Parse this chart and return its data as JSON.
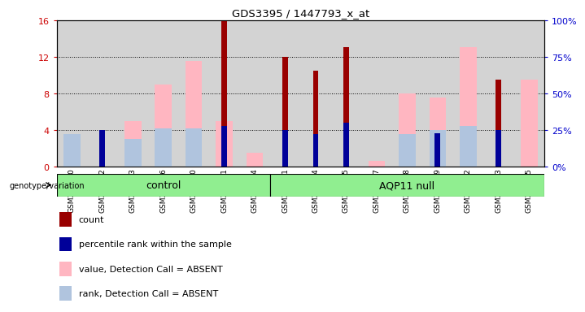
{
  "title": "GDS3395 / 1447793_x_at",
  "samples": [
    "GSM267980",
    "GSM267982",
    "GSM267983",
    "GSM267986",
    "GSM267990",
    "GSM267991",
    "GSM267994",
    "GSM267981",
    "GSM267984",
    "GSM267985",
    "GSM267987",
    "GSM267988",
    "GSM267989",
    "GSM267992",
    "GSM267993",
    "GSM267995"
  ],
  "groups": [
    "control",
    "control",
    "control",
    "control",
    "control",
    "control",
    "control",
    "AQP11 null",
    "AQP11 null",
    "AQP11 null",
    "AQP11 null",
    "AQP11 null",
    "AQP11 null",
    "AQP11 null",
    "AQP11 null",
    "AQP11 null"
  ],
  "count_left": [
    0,
    0,
    0,
    0,
    0,
    16,
    0,
    12,
    10.5,
    13,
    0,
    0,
    0,
    0,
    9.5,
    0
  ],
  "percentile_right": [
    0,
    25,
    0,
    0,
    0,
    28,
    0,
    25,
    22,
    30,
    0,
    0,
    23,
    0,
    25,
    0
  ],
  "value_absent_left": [
    3.5,
    0,
    5.0,
    9.0,
    11.5,
    5.0,
    1.5,
    0,
    0,
    0,
    0.6,
    8.0,
    7.5,
    13.0,
    0,
    9.5
  ],
  "rank_absent_right": [
    22,
    0,
    19,
    26,
    26,
    0,
    0,
    0,
    0,
    0,
    0,
    22,
    25,
    28,
    0,
    0
  ],
  "ylim_left": [
    0,
    16
  ],
  "ylim_right": [
    0,
    100
  ],
  "yticks_left": [
    0,
    4,
    8,
    12,
    16
  ],
  "yticks_right": [
    0,
    25,
    50,
    75,
    100
  ],
  "ytick_labels_left": [
    "0",
    "4",
    "8",
    "12",
    "16"
  ],
  "ytick_labels_right": [
    "0%",
    "25%",
    "50%",
    "75%",
    "100%"
  ],
  "left_tick_color": "#CC0000",
  "right_tick_color": "#0000CC",
  "control_label": "control",
  "aqp_label": "AQP11 null",
  "genotype_label": "genotype/variation",
  "legend_items": [
    "count",
    "percentile rank within the sample",
    "value, Detection Call = ABSENT",
    "rank, Detection Call = ABSENT"
  ],
  "legend_colors": [
    "#990000",
    "#000099",
    "#FFB6C1",
    "#B0C4DE"
  ],
  "bg_color": "#D3D3D3",
  "group_bg": "#90EE90",
  "control_count": 7,
  "aqp_count": 9,
  "white_bg": "#FFFFFF"
}
